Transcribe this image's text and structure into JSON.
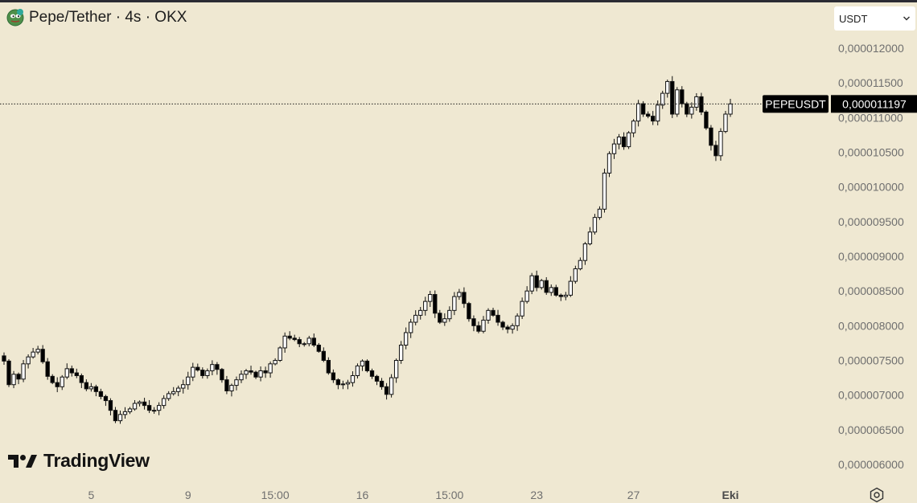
{
  "header": {
    "title": "Pepe/Tether · 4s · OKX",
    "symbol_icon": "pepe-coin-icon",
    "currency_select": {
      "value": "USDT",
      "icon": "chevron-down-icon"
    }
  },
  "watermark": {
    "text": "TradingView",
    "logo": "tradingview-logo"
  },
  "settings_icon": "gear-icon",
  "colors": {
    "background": "#efe8d2",
    "candle_up": "#ffffff",
    "candle_down": "#000000",
    "price_label_bg": "#000000"
  },
  "chart_data": {
    "type": "candlestick",
    "pair": "PEPEUSDT",
    "last_price_label": "PEPEUSDT",
    "last_price_text": "0,000011197",
    "last_price": 1.1197e-05,
    "ylim": [
      5.9e-06,
      1.22e-05
    ],
    "yticks": [
      {
        "value": 1.2e-05,
        "label": "0,000012000"
      },
      {
        "value": 1.15e-05,
        "label": "0,000011500"
      },
      {
        "value": 1.1e-05,
        "label": "0,000011000"
      },
      {
        "value": 1.05e-05,
        "label": "0,000010500"
      },
      {
        "value": 1e-05,
        "label": "0,000010000"
      },
      {
        "value": 9.5e-06,
        "label": "0,000009500"
      },
      {
        "value": 9e-06,
        "label": "0,000009000"
      },
      {
        "value": 8.5e-06,
        "label": "0,000008500"
      },
      {
        "value": 8e-06,
        "label": "0,000008000"
      },
      {
        "value": 7.5e-06,
        "label": "0,000007500"
      },
      {
        "value": 7e-06,
        "label": "0,000007000"
      },
      {
        "value": 6.5e-06,
        "label": "0,000006500"
      },
      {
        "value": 6e-06,
        "label": "0,000006000"
      }
    ],
    "xticks": [
      {
        "label": "5",
        "index": 18,
        "bold": false
      },
      {
        "label": "9",
        "index": 38,
        "bold": false
      },
      {
        "label": "15:00",
        "index": 56,
        "bold": false
      },
      {
        "label": "16",
        "index": 74,
        "bold": false
      },
      {
        "label": "15:00",
        "index": 92,
        "bold": false
      },
      {
        "label": "23",
        "index": 110,
        "bold": false
      },
      {
        "label": "27",
        "index": 130,
        "bold": false
      },
      {
        "label": "Eki",
        "index": 150,
        "bold": true
      }
    ],
    "closes": [
      7.49,
      7.15,
      7.3,
      7.23,
      7.45,
      7.55,
      7.62,
      7.66,
      7.48,
      7.27,
      7.18,
      7.12,
      7.26,
      7.38,
      7.32,
      7.28,
      7.18,
      7.09,
      7.12,
      7.05,
      6.98,
      6.92,
      6.78,
      6.63,
      6.72,
      6.76,
      6.8,
      6.88,
      6.9,
      6.85,
      6.78,
      6.78,
      6.85,
      6.95,
      7.02,
      7.05,
      7.1,
      7.15,
      7.26,
      7.4,
      7.36,
      7.28,
      7.35,
      7.44,
      7.37,
      7.22,
      7.06,
      7.14,
      7.22,
      7.3,
      7.35,
      7.33,
      7.26,
      7.35,
      7.32,
      7.45,
      7.5,
      7.68,
      7.85,
      7.82,
      7.8,
      7.74,
      7.74,
      7.82,
      7.72,
      7.63,
      7.5,
      7.32,
      7.22,
      7.15,
      7.16,
      7.18,
      7.28,
      7.42,
      7.49,
      7.35,
      7.27,
      7.2,
      7.12,
      7.01,
      7.25,
      7.5,
      7.72,
      7.9,
      8.05,
      8.15,
      8.22,
      8.35,
      8.45,
      8.18,
      8.05,
      8.1,
      8.22,
      8.42,
      8.48,
      8.32,
      8.1,
      8.0,
      7.92,
      8.08,
      8.22,
      8.15,
      8.05,
      7.98,
      7.95,
      8.0,
      8.14,
      8.35,
      8.5,
      8.72,
      8.55,
      8.65,
      8.48,
      8.55,
      8.44,
      8.42,
      8.44,
      8.64,
      8.82,
      8.94,
      9.18,
      9.35,
      9.56,
      9.68,
      10.2,
      10.48,
      10.62,
      10.72,
      10.58,
      10.78,
      10.95,
      11.2,
      11.05,
      11.02,
      10.95,
      11.18,
      11.35,
      11.52,
      11.05,
      11.4,
      11.2,
      11.05,
      11.15,
      11.3,
      11.08,
      10.85,
      10.6,
      10.45,
      10.8,
      11.05,
      11.197
    ],
    "points": 151,
    "note": ""
  }
}
